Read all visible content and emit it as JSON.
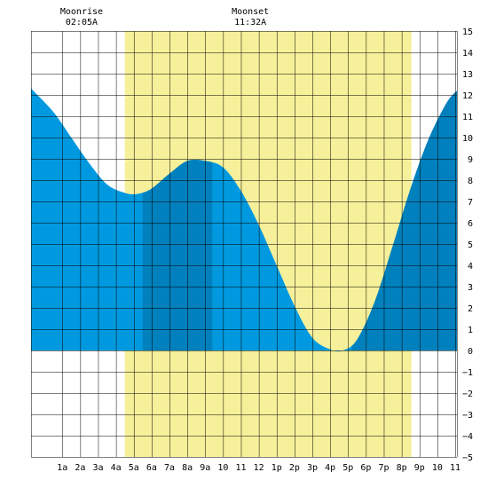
{
  "chart_data": {
    "type": "area",
    "x_unit": "hour of day",
    "xlim": [
      -0.75,
      23.1
    ],
    "ylim": [
      -5,
      15
    ],
    "y_ticks": [
      -5,
      -4,
      -3,
      -2,
      -1,
      0,
      1,
      2,
      3,
      4,
      5,
      6,
      7,
      8,
      9,
      10,
      11,
      12,
      13,
      14,
      15
    ],
    "x_ticks": [
      {
        "h": 1,
        "label": "1a"
      },
      {
        "h": 2,
        "label": "2a"
      },
      {
        "h": 3,
        "label": "3a"
      },
      {
        "h": 4,
        "label": "4a"
      },
      {
        "h": 5,
        "label": "5a"
      },
      {
        "h": 6,
        "label": "6a"
      },
      {
        "h": 7,
        "label": "7a"
      },
      {
        "h": 8,
        "label": "8a"
      },
      {
        "h": 9,
        "label": "9a"
      },
      {
        "h": 10,
        "label": "10"
      },
      {
        "h": 11,
        "label": "11"
      },
      {
        "h": 12,
        "label": "12"
      },
      {
        "h": 13,
        "label": "1p"
      },
      {
        "h": 14,
        "label": "2p"
      },
      {
        "h": 15,
        "label": "3p"
      },
      {
        "h": 16,
        "label": "4p"
      },
      {
        "h": 17,
        "label": "5p"
      },
      {
        "h": 18,
        "label": "6p"
      },
      {
        "h": 19,
        "label": "7p"
      },
      {
        "h": 20,
        "label": "8p"
      },
      {
        "h": 21,
        "label": "9p"
      },
      {
        "h": 22,
        "label": "10"
      },
      {
        "h": 23,
        "label": "11"
      }
    ],
    "x": [
      -0.75,
      0.5,
      1.5,
      2.5,
      3.5,
      4.5,
      5.2,
      6.0,
      7.0,
      8.0,
      9.0,
      10.0,
      11.0,
      12.0,
      13.0,
      14.0,
      15.0,
      16.0,
      16.7,
      17.5,
      18.5,
      19.5,
      20.5,
      21.5,
      22.5,
      23.1
    ],
    "y": [
      12.3,
      11.2,
      10.0,
      8.8,
      7.8,
      7.4,
      7.35,
      7.6,
      8.3,
      8.9,
      8.9,
      8.6,
      7.5,
      5.9,
      4.0,
      2.1,
      0.6,
      0.05,
      0.0,
      0.5,
      2.3,
      4.9,
      7.6,
      9.9,
      11.6,
      12.2
    ],
    "daylight": [
      4.5,
      20.55
    ],
    "dark_bands": [
      [
        5.5,
        9.4
      ],
      [
        17.2,
        23.1
      ]
    ],
    "events": [
      {
        "name": "Moonrise",
        "time": "02:05A",
        "h": 2.08
      },
      {
        "name": "Moonset",
        "time": "11:32A",
        "h": 11.53
      }
    ],
    "colors": {
      "tide": "#0099e0",
      "tide_dark": "#0080bc",
      "daylight": "#f6f09a",
      "grid": "#000000",
      "background": "#ffffff"
    }
  }
}
